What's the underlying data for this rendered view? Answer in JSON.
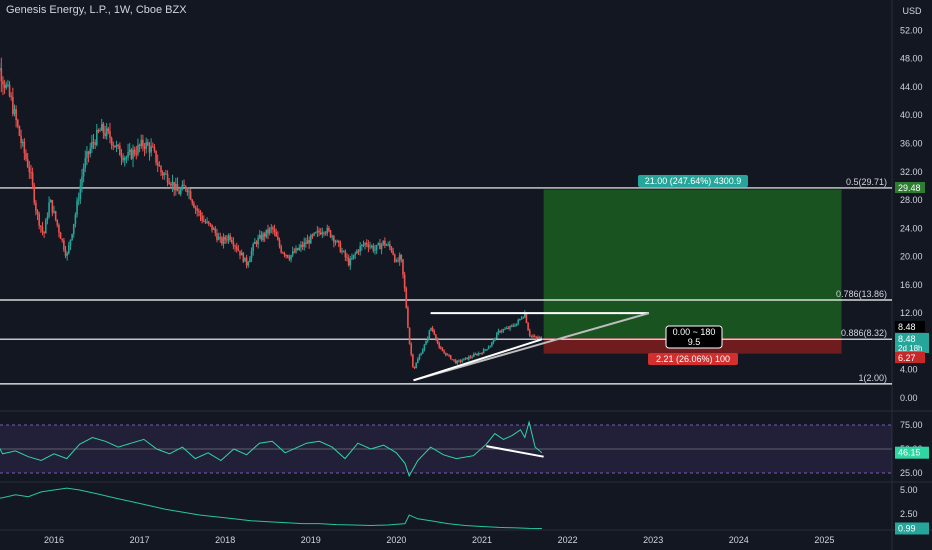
{
  "header": {
    "title": "Genesis Energy, L.P., 1W, Cboe BZX"
  },
  "price_axis": {
    "currency": "USD",
    "ticks": [
      "52.00",
      "48.00",
      "44.00",
      "40.00",
      "36.00",
      "32.00",
      "28.00",
      "24.00",
      "20.00",
      "16.00",
      "12.00",
      "8.00",
      "4.00",
      "0.00"
    ]
  },
  "time_axis": {
    "labels": [
      "2016",
      "2017",
      "2018",
      "2019",
      "2020",
      "2021",
      "2022",
      "2023",
      "2024",
      "2025"
    ]
  },
  "fib_levels": [
    {
      "label": "0.5(29.71)",
      "value": 29.71
    },
    {
      "label": "0.786(13.86)",
      "value": 13.86
    },
    {
      "label": "0.886(8.32)",
      "value": 8.32
    },
    {
      "label": "1(2.00)",
      "value": 2.0
    }
  ],
  "position": {
    "entry": 8.48,
    "target": 29.48,
    "stop": 6.27,
    "start_date": 2021.72,
    "end_date": 2025.2,
    "target_label": "21.00 (247.64%) 4300.9",
    "stop_label": "2.21 (26.06%) 100",
    "info_line1": "0.00 ~ 180",
    "info_line2": "9.5"
  },
  "price_tags": {
    "target": "29.48",
    "entry": "8.48",
    "entry_countdown": "2d 18h",
    "stop": "6.27",
    "level": "8.48"
  },
  "colors": {
    "background": "#131722",
    "text": "#d1d4dc",
    "up": "#26a69a",
    "down": "#ef5350",
    "profit_zone": "#1b5e20",
    "loss_zone": "#7f1d1d",
    "rsi_line": "#2fd6a1",
    "rsi_band": "#5b3fa6",
    "osc_line": "#26c6a0",
    "line_white": "#ffffff"
  },
  "rsi": {
    "ticks": [
      "75.00",
      "50.00",
      "25.00"
    ],
    "current": "46.15"
  },
  "oscillator": {
    "ticks": [
      "5.00",
      "2.50"
    ],
    "current": "0.99"
  },
  "chart_data": [
    {
      "type": "line",
      "title": "Genesis Energy, L.P., 1W, Cboe BZX",
      "ylabel": "USD",
      "ylim": [
        -2,
        54
      ],
      "x_labels": [
        "2016",
        "2017",
        "2018",
        "2019",
        "2020",
        "2021",
        "2022",
        "2023",
        "2024",
        "2025"
      ],
      "series": [
        {
          "values": [
            [
              2015.25,
              49
            ],
            [
              2015.35,
              47
            ],
            [
              2015.5,
              42
            ],
            [
              2015.62,
              36
            ],
            [
              2015.72,
              32
            ],
            [
              2015.8,
              26
            ],
            [
              2015.88,
              23
            ],
            [
              2015.95,
              28
            ],
            [
              2016.05,
              24
            ],
            [
              2016.15,
              20
            ],
            [
              2016.25,
              26
            ],
            [
              2016.35,
              33
            ],
            [
              2016.45,
              36
            ],
            [
              2016.55,
              38
            ],
            [
              2016.65,
              37
            ],
            [
              2016.75,
              35
            ],
            [
              2016.85,
              34
            ],
            [
              2016.95,
              35
            ],
            [
              2017.05,
              36
            ],
            [
              2017.15,
              35
            ],
            [
              2017.25,
              32
            ],
            [
              2017.35,
              31
            ],
            [
              2017.45,
              29
            ],
            [
              2017.55,
              30
            ],
            [
              2017.65,
              27
            ],
            [
              2017.75,
              25
            ],
            [
              2017.85,
              24
            ],
            [
              2017.95,
              22
            ],
            [
              2018.05,
              23
            ],
            [
              2018.15,
              21
            ],
            [
              2018.25,
              19
            ],
            [
              2018.35,
              22
            ],
            [
              2018.45,
              23
            ],
            [
              2018.55,
              24
            ],
            [
              2018.65,
              21
            ],
            [
              2018.75,
              20
            ],
            [
              2018.85,
              21
            ],
            [
              2018.95,
              22
            ],
            [
              2019.05,
              23
            ],
            [
              2019.15,
              24
            ],
            [
              2019.25,
              23
            ],
            [
              2019.35,
              21
            ],
            [
              2019.45,
              19
            ],
            [
              2019.55,
              21
            ],
            [
              2019.65,
              22
            ],
            [
              2019.75,
              21
            ],
            [
              2019.85,
              22
            ],
            [
              2019.95,
              21
            ],
            [
              2020.0,
              19
            ],
            [
              2020.05,
              20
            ],
            [
              2020.1,
              15
            ],
            [
              2020.15,
              8
            ],
            [
              2020.2,
              4
            ],
            [
              2020.27,
              6
            ],
            [
              2020.35,
              8
            ],
            [
              2020.4,
              10
            ],
            [
              2020.45,
              9
            ],
            [
              2020.5,
              7
            ],
            [
              2020.6,
              6
            ],
            [
              2020.7,
              5
            ],
            [
              2020.8,
              5.5
            ],
            [
              2020.9,
              6
            ],
            [
              2021.0,
              6.5
            ],
            [
              2021.1,
              7.5
            ],
            [
              2021.2,
              9.5
            ],
            [
              2021.3,
              9.8
            ],
            [
              2021.4,
              10.5
            ],
            [
              2021.5,
              12
            ],
            [
              2021.55,
              9
            ],
            [
              2021.62,
              8.5
            ],
            [
              2021.7,
              8.48
            ]
          ]
        }
      ]
    },
    {
      "type": "line",
      "title": "",
      "ylim": [
        15,
        85
      ],
      "yticks": [
        75,
        50,
        25
      ],
      "series": [
        {
          "values": [
            [
              2015.25,
              70
            ],
            [
              2015.4,
              45
            ],
            [
              2015.55,
              48
            ],
            [
              2015.7,
              42
            ],
            [
              2015.85,
              38
            ],
            [
              2016.0,
              45
            ],
            [
              2016.15,
              40
            ],
            [
              2016.3,
              55
            ],
            [
              2016.45,
              62
            ],
            [
              2016.6,
              58
            ],
            [
              2016.75,
              52
            ],
            [
              2016.9,
              56
            ],
            [
              2017.05,
              60
            ],
            [
              2017.2,
              50
            ],
            [
              2017.35,
              45
            ],
            [
              2017.5,
              52
            ],
            [
              2017.65,
              40
            ],
            [
              2017.8,
              46
            ],
            [
              2017.95,
              38
            ],
            [
              2018.1,
              50
            ],
            [
              2018.25,
              44
            ],
            [
              2018.4,
              56
            ],
            [
              2018.55,
              58
            ],
            [
              2018.7,
              46
            ],
            [
              2018.85,
              52
            ],
            [
              2018.95,
              56
            ],
            [
              2019.1,
              58
            ],
            [
              2019.25,
              52
            ],
            [
              2019.4,
              40
            ],
            [
              2019.55,
              56
            ],
            [
              2019.7,
              50
            ],
            [
              2019.85,
              54
            ],
            [
              2020.0,
              46
            ],
            [
              2020.1,
              35
            ],
            [
              2020.15,
              22
            ],
            [
              2020.25,
              38
            ],
            [
              2020.4,
              52
            ],
            [
              2020.55,
              44
            ],
            [
              2020.7,
              40
            ],
            [
              2020.9,
              43
            ],
            [
              2021.05,
              55
            ],
            [
              2021.15,
              66
            ],
            [
              2021.25,
              60
            ],
            [
              2021.35,
              64
            ],
            [
              2021.45,
              70
            ],
            [
              2021.5,
              62
            ],
            [
              2021.55,
              78
            ],
            [
              2021.62,
              52
            ],
            [
              2021.7,
              46.15
            ]
          ]
        }
      ]
    },
    {
      "type": "line",
      "title": "",
      "ylim": [
        0,
        6
      ],
      "yticks": [
        5,
        2.5
      ],
      "series": [
        {
          "values": [
            [
              2015.25,
              4.0
            ],
            [
              2015.4,
              4.2
            ],
            [
              2015.55,
              4.5
            ],
            [
              2015.7,
              4.3
            ],
            [
              2015.85,
              4.8
            ],
            [
              2016.0,
              5.0
            ],
            [
              2016.15,
              5.2
            ],
            [
              2016.3,
              5.0
            ],
            [
              2016.5,
              4.6
            ],
            [
              2016.7,
              4.2
            ],
            [
              2016.9,
              3.8
            ],
            [
              2017.1,
              3.4
            ],
            [
              2017.3,
              3.0
            ],
            [
              2017.5,
              2.7
            ],
            [
              2017.7,
              2.4
            ],
            [
              2017.9,
              2.2
            ],
            [
              2018.1,
              2.0
            ],
            [
              2018.3,
              1.8
            ],
            [
              2018.5,
              1.7
            ],
            [
              2018.7,
              1.6
            ],
            [
              2018.9,
              1.5
            ],
            [
              2019.1,
              1.5
            ],
            [
              2019.3,
              1.4
            ],
            [
              2019.5,
              1.35
            ],
            [
              2019.7,
              1.3
            ],
            [
              2019.9,
              1.35
            ],
            [
              2020.1,
              1.5
            ],
            [
              2020.15,
              2.4
            ],
            [
              2020.25,
              2.0
            ],
            [
              2020.4,
              1.8
            ],
            [
              2020.6,
              1.5
            ],
            [
              2020.8,
              1.3
            ],
            [
              2021.0,
              1.2
            ],
            [
              2021.2,
              1.1
            ],
            [
              2021.4,
              1.05
            ],
            [
              2021.55,
              1.0
            ],
            [
              2021.7,
              0.99
            ]
          ]
        }
      ]
    }
  ]
}
